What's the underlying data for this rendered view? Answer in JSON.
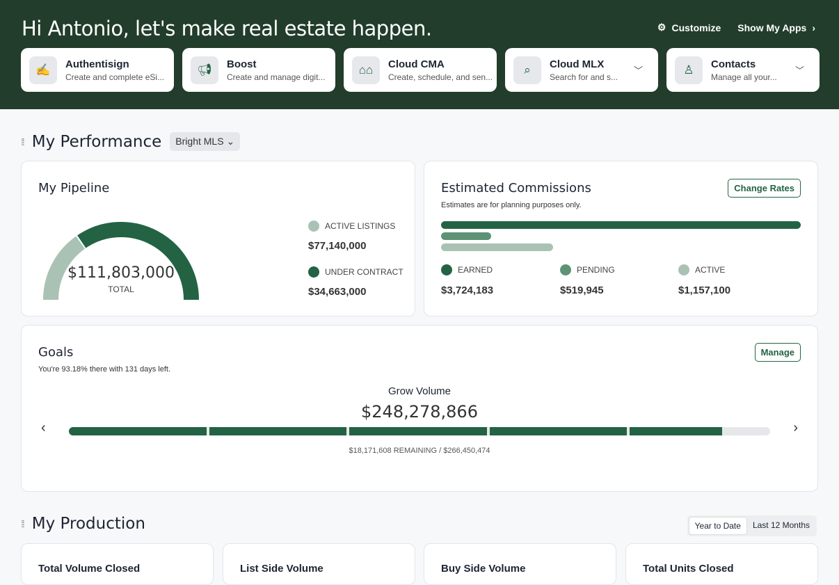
{
  "header": {
    "greeting": "Hi Antonio, let's make real estate happen.",
    "customize": "Customize",
    "show_apps": "Show My Apps"
  },
  "apps": [
    {
      "name": "Authentisign",
      "desc": "Create and complete eSi...",
      "icon": "signature-icon"
    },
    {
      "name": "Boost",
      "desc": "Create and manage digit...",
      "icon": "megaphone-icon"
    },
    {
      "name": "Cloud CMA",
      "desc": "Create, schedule, and sen...",
      "icon": "houses-icon"
    },
    {
      "name": "Cloud MLX",
      "desc": "Search for and s...",
      "icon": "search-home-icon"
    },
    {
      "name": "Contacts",
      "desc": "Manage all your...",
      "icon": "person-icon"
    }
  ],
  "performance": {
    "title": "My Performance",
    "mls": "Bright MLS"
  },
  "pipeline": {
    "title": "My Pipeline",
    "total": "$111,803,000",
    "total_label": "TOTAL",
    "active_label": "ACTIVE LISTINGS",
    "active_value": "$77,140,000",
    "contract_label": "UNDER CONTRACT",
    "contract_value": "$34,663,000",
    "under_contract_fraction": 0.31
  },
  "commissions": {
    "title": "Estimated Commissions",
    "subtitle": "Estimates are for planning purposes only.",
    "change_rates": "Change Rates",
    "earned_label": "EARNED",
    "earned": "$3,724,183",
    "pending_label": "PENDING",
    "pending": "$519,945",
    "active_label": "ACTIVE",
    "active": "$1,157,100"
  },
  "goals": {
    "title": "Goals",
    "subtitle": "You're 93.18% there with 131 days left.",
    "manage": "Manage",
    "goal_name": "Grow Volume",
    "amount": "$248,278,866",
    "remaining": "$18,171,608 REMAINING / $266,450,474",
    "progress": 0.9318
  },
  "production": {
    "title": "My Production",
    "tab_ytd": "Year to Date",
    "tab_12": "Last 12 Months",
    "cards": [
      "Total Volume Closed",
      "List Side Volume",
      "Buy Side Volume",
      "Total Units Closed"
    ]
  },
  "colors": {
    "header": "#223d2b",
    "earned": "#236344",
    "pending": "#5e9275",
    "active": "#a9c2b4"
  }
}
